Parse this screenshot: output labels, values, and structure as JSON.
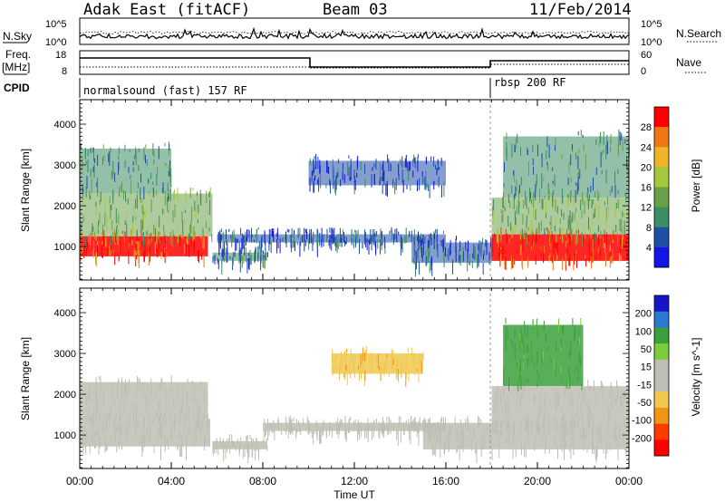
{
  "header": {
    "station": "Adak East (fitACF)",
    "beam": "Beam 03",
    "date": "11/Feb/2014"
  },
  "top_panels": {
    "nsky_label": "N.Sky",
    "nsky_ticks": [
      "10^5",
      "10^0"
    ],
    "nsearch_label": "N.Search",
    "nsearch_ticks": [
      "10^5",
      "10^0"
    ],
    "freq_label_1": "Freq.",
    "freq_label_2": "[MHz]",
    "freq_ticks": [
      "18",
      "8"
    ],
    "nave_label": "Nave",
    "nave_ticks": [
      "60",
      "0"
    ],
    "cpid_label": "CPID",
    "cpid_segments": [
      {
        "label": "normalsound (fast) 157 RF",
        "start_hour": 0
      },
      {
        "label": "rbsp 200 RF",
        "start_hour": 18
      }
    ]
  },
  "colors": {
    "power_scale": [
      "#1414e6",
      "#1e4ea8",
      "#3c8c64",
      "#6aa04a",
      "#a8c83c",
      "#f0b428",
      "#f07814",
      "#ff0000"
    ],
    "velocity_scale": [
      "#1414c8",
      "#2a7ad2",
      "#3ca03c",
      "#7ccc3c",
      "#bebeb4",
      "#bebeb4",
      "#f0c850",
      "#f09614",
      "#ff3c00",
      "#ff0000"
    ],
    "ground_scatter": "#bebeb4"
  },
  "chart_data": [
    {
      "type": "heatmap",
      "panel": "power",
      "xlabel": "Time UT",
      "ylabel": "Slant Range [km]",
      "x_ticks": [
        "00:00",
        "04:00",
        "08:00",
        "12:00",
        "16:00",
        "20:00",
        "00:00"
      ],
      "y_ticks": [
        "1000",
        "2000",
        "3000",
        "4000"
      ],
      "ylim": [
        180,
        4600
      ],
      "xlim_hours": [
        0,
        24
      ],
      "colorbar_label": "Power [dB]",
      "colorbar_ticks": [
        "28",
        "24",
        "20",
        "16",
        "12",
        "8",
        "4"
      ],
      "bands": [
        {
          "t0": 0.0,
          "t1": 5.6,
          "r0": 760,
          "r1": 1250,
          "value": 28
        },
        {
          "t0": 0.0,
          "t1": 5.8,
          "r0": 1250,
          "r1": 2300,
          "value": 14
        },
        {
          "t0": 0.0,
          "t1": 4.0,
          "r0": 2300,
          "r1": 3400,
          "value": 10
        },
        {
          "t0": 5.8,
          "t1": 8.2,
          "r0": 650,
          "r1": 850,
          "value": 8
        },
        {
          "t0": 6.0,
          "t1": 16.0,
          "r0": 1100,
          "r1": 1300,
          "value": 6
        },
        {
          "t0": 10.0,
          "t1": 16.0,
          "r0": 2500,
          "r1": 3100,
          "value": 5
        },
        {
          "t0": 14.5,
          "t1": 18.0,
          "r0": 600,
          "r1": 1100,
          "value": 6
        },
        {
          "t0": 18.0,
          "t1": 24.0,
          "r0": 650,
          "r1": 1300,
          "value": 28
        },
        {
          "t0": 18.0,
          "t1": 24.0,
          "r0": 1300,
          "r1": 2200,
          "value": 14
        },
        {
          "t0": 18.5,
          "t1": 24.0,
          "r0": 2200,
          "r1": 3700,
          "value": 10
        }
      ]
    },
    {
      "type": "heatmap",
      "panel": "velocity",
      "xlabel": "Time UT",
      "ylabel": "Slant Range [km]",
      "x_ticks": [
        "00:00",
        "04:00",
        "08:00",
        "12:00",
        "16:00",
        "20:00",
        "00:00"
      ],
      "y_ticks": [
        "1000",
        "2000",
        "3000",
        "4000"
      ],
      "ylim": [
        180,
        4600
      ],
      "xlim_hours": [
        0,
        24
      ],
      "colorbar_label": "Velocity [m s^-1]",
      "colorbar_ticks": [
        "200",
        "100",
        "50",
        "15",
        "-15",
        "-50",
        "-100",
        "-200"
      ],
      "bands": [
        {
          "t0": 0.0,
          "t1": 5.7,
          "r0": 720,
          "r1": 1400,
          "value": 0
        },
        {
          "t0": 0.0,
          "t1": 5.6,
          "r0": 1400,
          "r1": 2300,
          "value": 0
        },
        {
          "t0": 5.8,
          "t1": 8.2,
          "r0": 650,
          "r1": 850,
          "value": 0
        },
        {
          "t0": 8.0,
          "t1": 16.0,
          "r0": 1100,
          "r1": 1300,
          "value": 0
        },
        {
          "t0": 11.0,
          "t1": 15.0,
          "r0": 2500,
          "r1": 3000,
          "value": -40
        },
        {
          "t0": 15.0,
          "t1": 24.0,
          "r0": 650,
          "r1": 1300,
          "value": 0
        },
        {
          "t0": 18.0,
          "t1": 24.0,
          "r0": 1300,
          "r1": 2200,
          "value": 0
        },
        {
          "t0": 18.5,
          "t1": 22.0,
          "r0": 2200,
          "r1": 3700,
          "value": 60
        }
      ]
    }
  ]
}
